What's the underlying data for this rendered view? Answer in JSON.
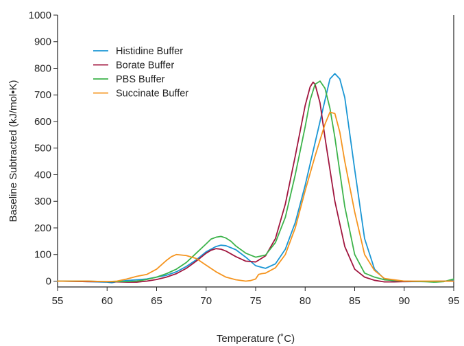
{
  "chart_data": {
    "type": "line",
    "xlabel": "Temperature (˚C)",
    "ylabel": "Baseline Subtracted (kJ/mol•K)",
    "xlim": [
      55,
      95
    ],
    "ylim": [
      0,
      1000
    ],
    "x_ticks": [
      55,
      60,
      65,
      70,
      75,
      80,
      85,
      90,
      95
    ],
    "y_ticks": [
      0,
      100,
      200,
      300,
      400,
      500,
      600,
      700,
      800,
      900,
      1000
    ],
    "grid": false,
    "legend_position": "top-left",
    "series": [
      {
        "name": "Histidine Buffer",
        "color": "#1a96d4",
        "x": [
          55,
          58,
          60,
          60.5,
          61,
          62,
          64,
          66,
          67,
          68,
          69,
          70,
          71,
          71.5,
          72,
          73,
          74,
          75,
          76,
          77,
          78,
          79,
          80,
          81,
          82,
          82.5,
          83,
          83.5,
          84,
          85,
          86,
          87,
          88,
          89,
          90,
          92,
          94,
          95
        ],
        "y": [
          0,
          -2,
          -4,
          -6,
          -2,
          2,
          8,
          22,
          35,
          55,
          80,
          110,
          130,
          135,
          133,
          118,
          90,
          58,
          48,
          65,
          120,
          220,
          360,
          520,
          680,
          760,
          780,
          760,
          690,
          420,
          160,
          45,
          8,
          0,
          -2,
          -2,
          0,
          2
        ]
      },
      {
        "name": "Borate Buffer",
        "color": "#a0153e",
        "x": [
          55,
          58,
          60,
          62,
          63,
          64,
          65,
          66,
          67,
          68,
          69,
          70,
          70.5,
          71,
          71.5,
          72,
          73,
          74,
          75,
          76,
          77,
          78,
          79,
          80,
          80.5,
          80.8,
          81,
          81.5,
          82,
          83,
          84,
          85,
          86,
          87,
          88,
          89,
          90,
          95
        ],
        "y": [
          0,
          -2,
          -2,
          -4,
          -4,
          0,
          6,
          15,
          28,
          48,
          75,
          105,
          116,
          122,
          120,
          113,
          92,
          75,
          72,
          95,
          160,
          290,
          470,
          660,
          730,
          748,
          740,
          670,
          540,
          300,
          130,
          45,
          15,
          3,
          -3,
          -3,
          -2,
          0
        ]
      },
      {
        "name": "PBS Buffer",
        "color": "#3cb34a",
        "x": [
          55,
          58,
          60,
          62,
          63,
          64,
          65,
          66,
          67,
          68,
          69,
          70,
          70.5,
          71,
          71.5,
          72,
          72.5,
          73,
          74,
          75,
          76,
          77,
          78,
          79,
          80,
          80.5,
          81,
          81.5,
          82,
          82.5,
          83,
          84,
          85,
          86,
          87,
          88,
          90,
          92,
          93,
          94,
          95
        ],
        "y": [
          0,
          0,
          -2,
          -2,
          0,
          6,
          15,
          28,
          45,
          70,
          105,
          140,
          158,
          165,
          168,
          162,
          150,
          132,
          105,
          90,
          98,
          145,
          240,
          400,
          580,
          680,
          740,
          752,
          725,
          650,
          540,
          280,
          100,
          30,
          15,
          5,
          0,
          -2,
          -4,
          -2,
          8
        ]
      },
      {
        "name": "Succinate Buffer",
        "color": "#f5941e",
        "x": [
          55,
          58,
          60,
          61,
          62,
          63,
          64,
          65,
          66,
          66.5,
          67,
          67.5,
          68,
          69,
          70,
          71,
          72,
          73,
          74,
          74.5,
          75,
          75.3,
          75.6,
          76,
          77,
          78,
          79,
          80,
          81,
          82,
          82.5,
          83,
          83.5,
          84,
          85,
          86,
          87,
          88,
          90,
          95
        ],
        "y": [
          0,
          0,
          -2,
          0,
          8,
          18,
          25,
          45,
          78,
          92,
          100,
          98,
          96,
          85,
          60,
          35,
          15,
          5,
          0,
          2,
          8,
          25,
          28,
          30,
          50,
          100,
          200,
          340,
          470,
          590,
          635,
          630,
          560,
          450,
          260,
          100,
          40,
          10,
          0,
          0
        ]
      }
    ]
  }
}
